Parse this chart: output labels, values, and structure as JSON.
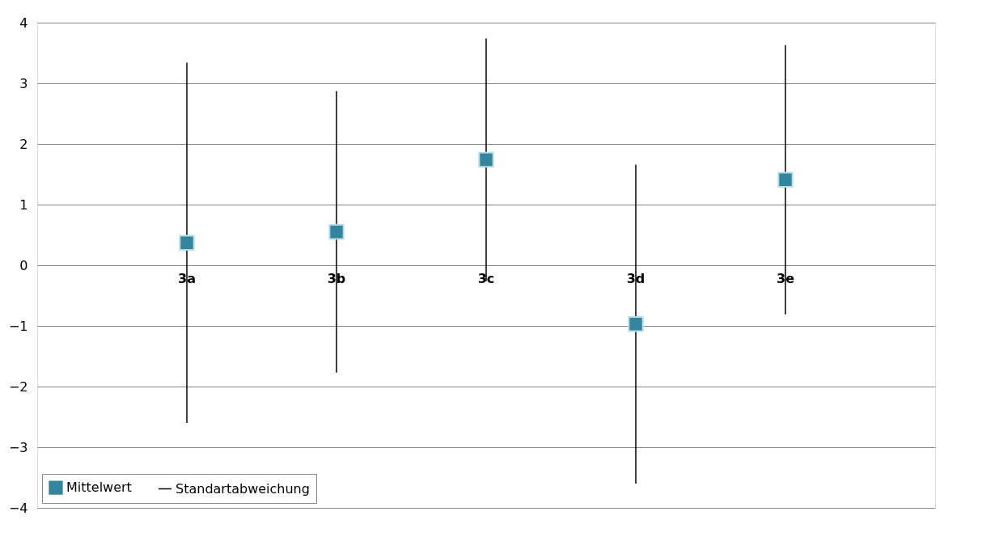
{
  "chart_data": {
    "type": "scatter",
    "categories": [
      "3a",
      "3b",
      "3c",
      "3d",
      "3e"
    ],
    "series": [
      {
        "name": "Mittelwert",
        "color": "#31859c",
        "values": [
          0.37,
          0.55,
          1.74,
          -0.97,
          1.41
        ],
        "errors": [
          2.97,
          2.32,
          2.0,
          2.63,
          2.22
        ]
      }
    ],
    "annotations": [
      "Standartabweichung"
    ],
    "ylim": [
      -4,
      4
    ],
    "yticks": [
      -4,
      -3,
      -2,
      -1,
      0,
      1,
      2,
      3,
      4
    ],
    "grid": "y",
    "legend": "bottom left",
    "marker": "square"
  }
}
